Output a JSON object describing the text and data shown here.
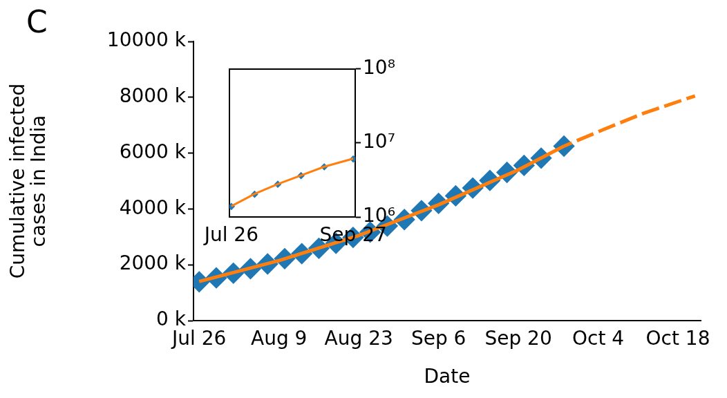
{
  "chart_data": [
    {
      "type": "line",
      "title": "C",
      "xlabel": "Date",
      "ylabel": "Cumulative infected\ncases in India",
      "xlim": [
        "--07-25",
        "--10-22"
      ],
      "xticks": [
        {
          "value": "--07-26",
          "label": "Jul 26"
        },
        {
          "value": "--08-09",
          "label": "Aug 9"
        },
        {
          "value": "--08-23",
          "label": "Aug 23"
        },
        {
          "value": "--09-06",
          "label": "Sep 6"
        },
        {
          "value": "--09-20",
          "label": "Sep 20"
        },
        {
          "value": "--10-04",
          "label": "Oct 4"
        },
        {
          "value": "--10-18",
          "label": "Oct 18"
        }
      ],
      "ylim": [
        0,
        10000
      ],
      "yticks": [
        {
          "value": 0,
          "label": "0 k"
        },
        {
          "value": 2000,
          "label": "2000 k"
        },
        {
          "value": 4000,
          "label": "4000 k"
        },
        {
          "value": 6000,
          "label": "6000 k"
        },
        {
          "value": 8000,
          "label": "8000 k"
        },
        {
          "value": 10000,
          "label": "10000 k"
        }
      ],
      "grid": false,
      "legend": false,
      "series": [
        {
          "type": "scatter",
          "color": "#1f77b4",
          "marker": "diamond",
          "x": [
            "--07-26",
            "--07-29",
            "--08-01",
            "--08-04",
            "--08-07",
            "--08-10",
            "--08-13",
            "--08-16",
            "--08-19",
            "--08-22",
            "--08-25",
            "--08-28",
            "--08-31",
            "--09-03",
            "--09-06",
            "--09-09",
            "--09-12",
            "--09-15",
            "--09-18",
            "--09-21",
            "--09-24",
            "--09-28"
          ],
          "values": [
            1390,
            1530,
            1700,
            1860,
            2030,
            2220,
            2400,
            2590,
            2770,
            2980,
            3170,
            3390,
            3620,
            3940,
            4200,
            4470,
            4750,
            5020,
            5310,
            5560,
            5820,
            6250
          ]
        },
        {
          "color": "#ff7f0e",
          "marker": "none",
          "line_style": "solid",
          "x": [
            "--07-26",
            "--08-09",
            "--08-23",
            "--09-06",
            "--09-20",
            "--09-28"
          ],
          "values": [
            1400,
            2150,
            3050,
            4150,
            5400,
            6250
          ]
        },
        {
          "color": "#ff7f0e",
          "marker": "none",
          "line_style": "dashed",
          "x": [
            "--09-28",
            "--10-05",
            "--10-12",
            "--10-21"
          ],
          "values": [
            6250,
            6850,
            7430,
            8050
          ]
        }
      ]
    },
    {
      "type": "line",
      "log": true,
      "xlim": [
        "--07-25",
        "--09-28"
      ],
      "xticks": [
        {
          "value": "--07-26",
          "label": "Jul 26"
        },
        {
          "value": "--09-27",
          "label": "Sep 27"
        }
      ],
      "ylim": [
        1000000,
        100000000
      ],
      "yticks": [
        {
          "value": 1000000,
          "label": "10⁶"
        },
        {
          "value": 10000000,
          "label": "10⁷"
        },
        {
          "value": 100000000,
          "label": "10⁸"
        }
      ],
      "grid": false,
      "legend": false,
      "series": [
        {
          "type": "scatter",
          "color": "#1f77b4",
          "marker": "diamond",
          "x": [
            "--07-26",
            "--08-07",
            "--08-19",
            "--08-31",
            "--09-12",
            "--09-27"
          ],
          "values": [
            1385000,
            2027000,
            2767000,
            3621000,
            4754000,
            6074000
          ]
        },
        {
          "color": "#ff7f0e",
          "marker": "none",
          "line_style": "solid",
          "x": [
            "--07-26",
            "--08-07",
            "--08-19",
            "--08-31",
            "--09-12",
            "--09-27"
          ],
          "values": [
            1400000,
            2050000,
            2780000,
            3640000,
            4780000,
            6150000
          ]
        }
      ]
    }
  ]
}
